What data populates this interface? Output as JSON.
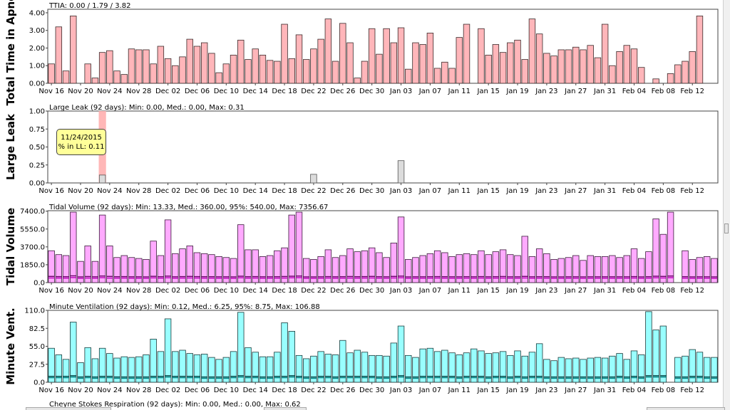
{
  "tooltip": {
    "date": "11/24/2015",
    "label": "% in LL: 0.11"
  },
  "colors": {
    "pink": "#ffb6ba",
    "pink_edge": "#3a2a2a",
    "magenta": "#ffaaff",
    "magenta_dark": "#b800b8",
    "cyan": "#99ffff",
    "teal_dark": "#008080",
    "gray": "#dcdcdc",
    "highlight": "#ffb3b3"
  },
  "chart_data": [
    {
      "type": "bar",
      "ylabel": "Total Time in Apnea",
      "title": "TTIA: 0.00 / 1.79 / 3.82",
      "ylim": [
        0,
        4.2
      ],
      "yticks": [
        0,
        1,
        2,
        3,
        4
      ],
      "ytick_labels": [
        "0.00",
        "1.00",
        "2.00",
        "3.00",
        "4.00"
      ],
      "values": [
        1.1,
        3.2,
        0.7,
        3.82,
        0,
        1.1,
        0.3,
        1.75,
        1.85,
        0.7,
        0.5,
        1.95,
        1.9,
        1.9,
        1.1,
        2.1,
        1.4,
        1.0,
        1.5,
        2.5,
        2.1,
        2.3,
        1.7,
        0.6,
        1.1,
        1.6,
        2.45,
        1.35,
        1.95,
        1.6,
        1.3,
        1.25,
        3.35,
        1.4,
        2.75,
        1.35,
        1.95,
        2.5,
        3.65,
        1.25,
        3.4,
        2.3,
        0.3,
        1.25,
        3.1,
        1.65,
        3.1,
        2.3,
        3.15,
        0.8,
        2.3,
        2.2,
        2.85,
        0.85,
        1.2,
        0.85,
        2.6,
        3.35,
        0,
        3.1,
        1.6,
        2.2,
        1.75,
        2.3,
        2.45,
        1.35,
        3.65,
        2.8,
        1.7,
        1.55,
        1.9,
        1.9,
        2.05,
        1.9,
        2.15,
        1.45,
        3.35,
        1.0,
        1.8,
        2.15,
        1.95,
        0.9,
        0,
        0.25,
        0,
        0.55,
        1.05,
        1.25,
        1.8,
        3.82
      ]
    },
    {
      "type": "bar",
      "ylabel": "Large Leak",
      "title": "Large Leak (92 days):  Min: 0.00, Med.: 0.00, Max: 0.31",
      "ylim": [
        0,
        1.0
      ],
      "yticks": [
        0,
        0.25,
        0.5,
        0.75,
        1.0
      ],
      "ytick_labels": [
        "0.00",
        "0.25",
        "0.50",
        "0.75",
        "1.00"
      ],
      "values": [
        0,
        0,
        0,
        0,
        0,
        0,
        0,
        0.11,
        0,
        0,
        0,
        0,
        0,
        0,
        0,
        0,
        0,
        0,
        0,
        0,
        0,
        0,
        0,
        0,
        0,
        0,
        0,
        0,
        0,
        0,
        0,
        0,
        0,
        0,
        0,
        0,
        0.12,
        0,
        0,
        0,
        0,
        0,
        0,
        0,
        0,
        0,
        0,
        0,
        0.31,
        0,
        0,
        0,
        0,
        0,
        0,
        0,
        0,
        0,
        0,
        0,
        0,
        0,
        0,
        0,
        0,
        0,
        0,
        0,
        0,
        0,
        0,
        0,
        0,
        0,
        0,
        0,
        0,
        0,
        0,
        0,
        0,
        0,
        0,
        0,
        0,
        0,
        0,
        0,
        0,
        0
      ],
      "highlight_index": 7
    },
    {
      "type": "bar",
      "ylabel": "Tidal Volume",
      "title": "Tidal Volume (92 days):  Min: 13.33, Med.: 360.00, 95%: 540.00, Max: 7356.67",
      "ylim": [
        0,
        7450
      ],
      "yticks": [
        0,
        1850,
        3700,
        5550,
        7400
      ],
      "ytick_labels": [
        "0.0",
        "1850.0",
        "3700.0",
        "5550.0",
        "7400.0"
      ],
      "values": [
        3300,
        2900,
        2800,
        7300,
        2200,
        3800,
        2200,
        7000,
        3800,
        2600,
        2800,
        2600,
        2500,
        2400,
        4300,
        2800,
        6500,
        3000,
        3500,
        3800,
        3100,
        3000,
        2900,
        2700,
        2600,
        2500,
        6000,
        3400,
        3400,
        2700,
        2800,
        3300,
        3600,
        7000,
        7300,
        2500,
        2400,
        2700,
        3400,
        2600,
        2800,
        3500,
        3200,
        3300,
        3600,
        3100,
        2600,
        4100,
        6800,
        2400,
        2600,
        2800,
        3000,
        3300,
        3100,
        2700,
        2900,
        3000,
        2900,
        3300,
        2900,
        3200,
        3400,
        2900,
        2800,
        4800,
        2700,
        3500,
        3000,
        2400,
        2500,
        2600,
        2800,
        2300,
        2800,
        2700,
        2700,
        2800,
        2600,
        2800,
        3500,
        2500,
        3200,
        6600,
        5000,
        7300,
        0,
        3300,
        2400,
        2600,
        2700,
        2500
      ],
      "series_lines": [
        {
          "name": "median",
          "values": [
            480,
            470,
            460,
            520,
            440,
            470,
            450,
            510,
            470,
            460,
            470,
            450,
            450,
            440,
            490,
            460,
            500,
            450,
            470,
            480,
            470,
            460,
            460,
            450,
            450,
            440,
            500,
            460,
            470,
            450,
            450,
            460,
            470,
            500,
            510,
            440,
            440,
            450,
            470,
            450,
            460,
            470,
            460,
            470,
            480,
            460,
            450,
            480,
            500,
            440,
            450,
            450,
            460,
            470,
            460,
            450,
            450,
            460,
            450,
            470,
            450,
            460,
            470,
            450,
            450,
            480,
            450,
            460,
            460,
            440,
            440,
            450,
            450,
            440,
            450,
            450,
            450,
            450,
            450,
            450,
            470,
            440,
            460,
            500,
            480,
            510,
            0,
            460,
            440,
            450,
            450,
            440
          ]
        },
        {
          "name": "95%",
          "values": [
            640,
            620,
            610,
            700,
            590,
            630,
            600,
            680,
            640,
            610,
            620,
            600,
            600,
            590,
            650,
            610,
            670,
            600,
            620,
            640,
            620,
            610,
            610,
            600,
            600,
            590,
            660,
            610,
            620,
            600,
            600,
            610,
            630,
            660,
            680,
            590,
            590,
            600,
            620,
            600,
            610,
            630,
            610,
            620,
            640,
            610,
            600,
            640,
            670,
            590,
            600,
            600,
            610,
            620,
            610,
            600,
            600,
            610,
            600,
            620,
            600,
            610,
            630,
            600,
            600,
            640,
            600,
            610,
            610,
            590,
            590,
            600,
            600,
            590,
            600,
            600,
            600,
            600,
            600,
            600,
            620,
            590,
            610,
            660,
            640,
            680,
            0,
            610,
            590,
            600,
            600,
            590
          ]
        }
      ]
    },
    {
      "type": "bar",
      "ylabel": "Minute Vent.",
      "title": "Minute Ventilation (92 days):  Min: 0.12, Med.: 6.25, 95%: 8.75, Max: 106.88",
      "ylim": [
        0,
        110
      ],
      "yticks": [
        0,
        27.5,
        55,
        82.5,
        110
      ],
      "ytick_labels": [
        "0.0",
        "27.5",
        "55.0",
        "82.5",
        "110.0"
      ],
      "values": [
        52,
        42,
        35,
        92,
        30,
        53,
        36,
        52,
        44,
        37,
        39,
        38,
        39,
        42,
        66,
        47,
        97,
        47,
        49,
        44,
        42,
        43,
        38,
        35,
        38,
        47,
        107,
        53,
        46,
        39,
        39,
        46,
        91,
        78,
        41,
        36,
        40,
        47,
        43,
        42,
        64,
        45,
        49,
        46,
        41,
        41,
        40,
        60,
        86,
        41,
        38,
        51,
        52,
        47,
        49,
        45,
        42,
        45,
        51,
        48,
        44,
        45,
        47,
        41,
        48,
        40,
        46,
        59,
        35,
        33,
        38,
        36,
        37,
        35,
        37,
        38,
        37,
        40,
        44,
        35,
        48,
        42,
        108,
        80,
        86,
        0,
        38,
        40,
        50,
        46,
        38,
        38
      ],
      "series_lines": [
        {
          "name": "median",
          "values": [
            7,
            7,
            7,
            8,
            6,
            7,
            6,
            7,
            7,
            6,
            6,
            6,
            6,
            6,
            7,
            7,
            8,
            7,
            7,
            7,
            7,
            6,
            6,
            6,
            6,
            7,
            8,
            7,
            7,
            6,
            6,
            7,
            7,
            8,
            7,
            6,
            6,
            7,
            7,
            6,
            7,
            7,
            7,
            7,
            7,
            6,
            6,
            7,
            8,
            6,
            6,
            7,
            7,
            7,
            7,
            7,
            6,
            7,
            7,
            7,
            6,
            7,
            7,
            6,
            7,
            6,
            7,
            7,
            6,
            6,
            6,
            6,
            6,
            6,
            6,
            6,
            6,
            6,
            7,
            6,
            7,
            6,
            8,
            8,
            8,
            0,
            6,
            6,
            7,
            7,
            6,
            6
          ]
        },
        {
          "name": "95%",
          "values": [
            9,
            9,
            9,
            10,
            8,
            9,
            8,
            9,
            9,
            8,
            8,
            8,
            8,
            8,
            9,
            9,
            10,
            9,
            9,
            9,
            9,
            8,
            8,
            8,
            8,
            9,
            10,
            9,
            9,
            8,
            8,
            9,
            9,
            10,
            9,
            8,
            8,
            9,
            9,
            8,
            9,
            9,
            9,
            9,
            9,
            8,
            8,
            9,
            10,
            8,
            8,
            9,
            9,
            9,
            9,
            9,
            8,
            9,
            9,
            9,
            8,
            9,
            9,
            8,
            9,
            8,
            9,
            9,
            8,
            8,
            8,
            8,
            8,
            8,
            8,
            8,
            8,
            8,
            9,
            8,
            9,
            8,
            10,
            10,
            10,
            0,
            8,
            8,
            9,
            9,
            8,
            8
          ]
        }
      ]
    }
  ],
  "x_tick_labels": [
    "Nov 16",
    "Nov 20",
    "Nov 24",
    "Nov 28",
    "Dec 02",
    "Dec 06",
    "Dec 10",
    "Dec 14",
    "Dec 18",
    "Dec 22",
    "Dec 26",
    "Dec 30",
    "Jan 03",
    "Jan 07",
    "Jan 11",
    "Jan 15",
    "Jan 19",
    "Jan 23",
    "Jan 27",
    "Jan 31",
    "Feb 04",
    "Feb 08",
    "Feb 12"
  ],
  "footer_title": "Cheyne Stokes Respiration (92 days):  Min: 0.00, Med.: 0.00, Max: 0.62"
}
